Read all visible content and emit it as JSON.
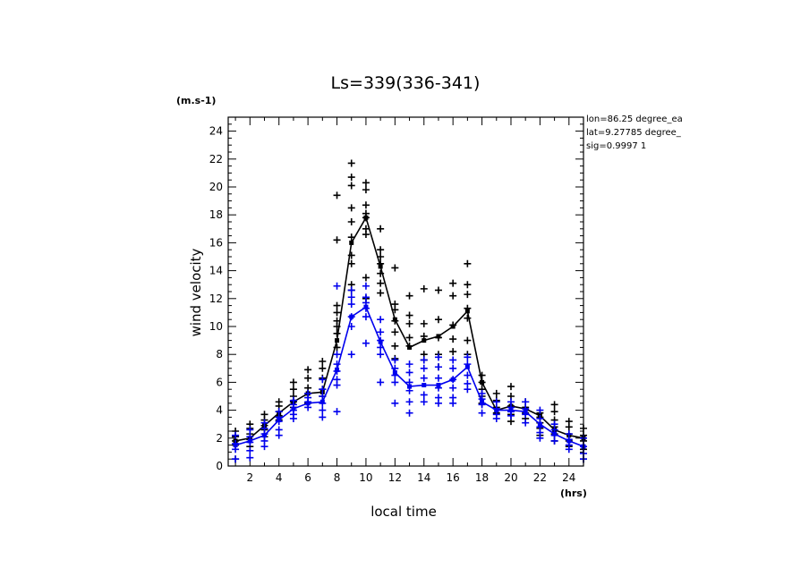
{
  "chart_data": {
    "type": "scatter",
    "title": "Ls=339(336-341)",
    "ylabel": "wind velocity",
    "yunit": "(m.s-1)",
    "xlabel": "local time",
    "xunit": "(hrs)",
    "xlim": [
      0.5,
      25
    ],
    "ylim": [
      0,
      25
    ],
    "xticks": [
      2,
      4,
      6,
      8,
      10,
      12,
      14,
      16,
      18,
      20,
      22,
      24
    ],
    "yticks": [
      0,
      2,
      4,
      6,
      8,
      10,
      12,
      14,
      16,
      18,
      20,
      22,
      24
    ],
    "grid": false,
    "annotations": [
      "lon=86.25 degree_ea",
      "lat=9.27785 degree_",
      "sig=0.9997 1"
    ],
    "colors": {
      "black": "#000000",
      "blue": "#0000ee"
    },
    "series": [
      {
        "color": "black",
        "x": [
          1,
          2,
          3,
          4,
          5,
          6,
          7,
          8,
          9,
          10,
          11,
          12,
          13,
          14,
          15,
          16,
          17,
          18,
          19,
          20,
          21,
          22,
          23,
          24,
          25
        ],
        "values": [
          1.8,
          2.0,
          2.9,
          3.8,
          4.6,
          5.2,
          5.3,
          9.0,
          16.0,
          17.8,
          14.3,
          10.5,
          8.5,
          9.0,
          9.3,
          10.0,
          11.1,
          6.0,
          4.0,
          4.3,
          4.1,
          3.6,
          2.6,
          2.2,
          2.0
        ],
        "points": [
          [
            1,
            2.5
          ],
          [
            1,
            2.1
          ],
          [
            1,
            1.8
          ],
          [
            1,
            1.5
          ],
          [
            1,
            0.5
          ],
          [
            2,
            3.0
          ],
          [
            2,
            2.7
          ],
          [
            2,
            2.3
          ],
          [
            2,
            1.9
          ],
          [
            2,
            1.4
          ],
          [
            3,
            3.7
          ],
          [
            3,
            3.3
          ],
          [
            3,
            2.9
          ],
          [
            3,
            2.6
          ],
          [
            3,
            2.1
          ],
          [
            4,
            4.6
          ],
          [
            4,
            4.3
          ],
          [
            4,
            3.9
          ],
          [
            4,
            3.6
          ],
          [
            4,
            3.3
          ],
          [
            5,
            6.0
          ],
          [
            5,
            5.5
          ],
          [
            5,
            5.0
          ],
          [
            5,
            4.6
          ],
          [
            5,
            4.2
          ],
          [
            6,
            6.9
          ],
          [
            6,
            6.3
          ],
          [
            6,
            5.6
          ],
          [
            6,
            5.2
          ],
          [
            6,
            4.5
          ],
          [
            7,
            7.5
          ],
          [
            7,
            7.0
          ],
          [
            7,
            6.3
          ],
          [
            7,
            5.5
          ],
          [
            7,
            5.0
          ],
          [
            8,
            19.4
          ],
          [
            8,
            16.2
          ],
          [
            8,
            11.5
          ],
          [
            8,
            11.0
          ],
          [
            8,
            10.4
          ],
          [
            8,
            10.0
          ],
          [
            8,
            9.5
          ],
          [
            8,
            8.5
          ],
          [
            9,
            21.7
          ],
          [
            9,
            20.7
          ],
          [
            9,
            20.1
          ],
          [
            9,
            18.5
          ],
          [
            9,
            17.5
          ],
          [
            9,
            16.4
          ],
          [
            9,
            15.1
          ],
          [
            9,
            14.5
          ],
          [
            9,
            13.0
          ],
          [
            9,
            12.6
          ],
          [
            10,
            20.3
          ],
          [
            10,
            19.8
          ],
          [
            10,
            18.7
          ],
          [
            10,
            18.1
          ],
          [
            10,
            17.8
          ],
          [
            10,
            17.0
          ],
          [
            10,
            16.6
          ],
          [
            10,
            13.5
          ],
          [
            10,
            12.0
          ],
          [
            11,
            17.0
          ],
          [
            11,
            15.5
          ],
          [
            11,
            15.0
          ],
          [
            11,
            14.5
          ],
          [
            11,
            13.8
          ],
          [
            11,
            13.1
          ],
          [
            11,
            12.4
          ],
          [
            12,
            14.2
          ],
          [
            12,
            11.6
          ],
          [
            12,
            11.2
          ],
          [
            12,
            10.4
          ],
          [
            12,
            9.6
          ],
          [
            12,
            8.6
          ],
          [
            12,
            7.7
          ],
          [
            13,
            12.2
          ],
          [
            13,
            10.8
          ],
          [
            13,
            10.2
          ],
          [
            13,
            9.2
          ],
          [
            13,
            8.6
          ],
          [
            14,
            12.7
          ],
          [
            14,
            10.2
          ],
          [
            14,
            9.3
          ],
          [
            14,
            8.0
          ],
          [
            14,
            7.6
          ],
          [
            15,
            12.6
          ],
          [
            15,
            10.5
          ],
          [
            15,
            9.2
          ],
          [
            15,
            8.0
          ],
          [
            15,
            7.1
          ],
          [
            16,
            13.1
          ],
          [
            16,
            12.2
          ],
          [
            16,
            10.1
          ],
          [
            16,
            9.1
          ],
          [
            16,
            8.2
          ],
          [
            17,
            14.5
          ],
          [
            17,
            13.0
          ],
          [
            17,
            12.3
          ],
          [
            17,
            11.3
          ],
          [
            17,
            10.6
          ],
          [
            17,
            9.0
          ],
          [
            17,
            8.0
          ],
          [
            18,
            6.5
          ],
          [
            18,
            6.0
          ],
          [
            18,
            5.5
          ],
          [
            18,
            5.0
          ],
          [
            18,
            4.5
          ],
          [
            19,
            5.2
          ],
          [
            19,
            4.7
          ],
          [
            19,
            4.2
          ],
          [
            19,
            3.8
          ],
          [
            20,
            5.7
          ],
          [
            20,
            5.0
          ],
          [
            20,
            4.3
          ],
          [
            20,
            3.7
          ],
          [
            20,
            3.2
          ],
          [
            21,
            4.6
          ],
          [
            21,
            4.2
          ],
          [
            21,
            3.8
          ],
          [
            21,
            3.4
          ],
          [
            22,
            3.8
          ],
          [
            22,
            3.5
          ],
          [
            22,
            3.1
          ],
          [
            22,
            2.7
          ],
          [
            22,
            2.2
          ],
          [
            23,
            4.4
          ],
          [
            23,
            3.9
          ],
          [
            23,
            3.3
          ],
          [
            23,
            2.8
          ],
          [
            23,
            2.3
          ],
          [
            23,
            1.8
          ],
          [
            24,
            3.2
          ],
          [
            24,
            2.8
          ],
          [
            24,
            2.3
          ],
          [
            24,
            1.8
          ],
          [
            24,
            1.4
          ],
          [
            25,
            2.7
          ],
          [
            25,
            2.2
          ],
          [
            25,
            1.8
          ],
          [
            25,
            1.2
          ],
          [
            25,
            0.5
          ]
        ]
      },
      {
        "color": "blue",
        "x": [
          1,
          2,
          3,
          4,
          5,
          6,
          7,
          8,
          9,
          10,
          11,
          12,
          13,
          14,
          15,
          16,
          17,
          18,
          19,
          20,
          21,
          22,
          23,
          24,
          25
        ],
        "values": [
          1.5,
          1.8,
          2.2,
          3.3,
          4.1,
          4.5,
          4.6,
          6.9,
          10.7,
          11.4,
          8.9,
          6.7,
          5.7,
          5.8,
          5.8,
          6.2,
          7.1,
          4.6,
          4.0,
          4.0,
          3.9,
          3.0,
          2.3,
          1.8,
          1.4
        ],
        "points": [
          [
            1,
            2.2
          ],
          [
            1,
            1.6
          ],
          [
            1,
            1.2
          ],
          [
            1,
            0.5
          ],
          [
            2,
            2.6
          ],
          [
            2,
            2.1
          ],
          [
            2,
            1.7
          ],
          [
            2,
            1.1
          ],
          [
            2,
            0.6
          ],
          [
            3,
            3.1
          ],
          [
            3,
            2.7
          ],
          [
            3,
            2.3
          ],
          [
            3,
            1.8
          ],
          [
            3,
            1.4
          ],
          [
            4,
            3.9
          ],
          [
            4,
            3.5
          ],
          [
            4,
            3.2
          ],
          [
            4,
            2.6
          ],
          [
            4,
            2.2
          ],
          [
            5,
            4.7
          ],
          [
            5,
            4.4
          ],
          [
            5,
            4.0
          ],
          [
            5,
            3.7
          ],
          [
            5,
            3.4
          ],
          [
            6,
            5.2
          ],
          [
            6,
            4.9
          ],
          [
            6,
            4.6
          ],
          [
            6,
            4.2
          ],
          [
            7,
            6.2
          ],
          [
            7,
            5.5
          ],
          [
            7,
            5.0
          ],
          [
            7,
            4.5
          ],
          [
            7,
            4.0
          ],
          [
            7,
            3.5
          ],
          [
            8,
            12.9
          ],
          [
            8,
            8.0
          ],
          [
            8,
            7.3
          ],
          [
            8,
            6.8
          ],
          [
            8,
            6.2
          ],
          [
            8,
            5.8
          ],
          [
            8,
            3.9
          ],
          [
            9,
            12.6
          ],
          [
            9,
            12.1
          ],
          [
            9,
            11.6
          ],
          [
            9,
            10.7
          ],
          [
            9,
            10.0
          ],
          [
            9,
            8.0
          ],
          [
            10,
            12.9
          ],
          [
            10,
            12.1
          ],
          [
            10,
            11.7
          ],
          [
            10,
            11.3
          ],
          [
            10,
            10.7
          ],
          [
            10,
            8.8
          ],
          [
            11,
            10.5
          ],
          [
            11,
            9.6
          ],
          [
            11,
            9.0
          ],
          [
            11,
            8.5
          ],
          [
            11,
            8.0
          ],
          [
            11,
            6.0
          ],
          [
            12,
            7.6
          ],
          [
            12,
            7.0
          ],
          [
            12,
            6.5
          ],
          [
            12,
            6.0
          ],
          [
            12,
            4.5
          ],
          [
            13,
            7.3
          ],
          [
            13,
            6.7
          ],
          [
            13,
            6.0
          ],
          [
            13,
            5.4
          ],
          [
            13,
            4.6
          ],
          [
            13,
            3.8
          ],
          [
            14,
            7.6
          ],
          [
            14,
            7.0
          ],
          [
            14,
            6.3
          ],
          [
            14,
            5.1
          ],
          [
            14,
            4.6
          ],
          [
            15,
            7.8
          ],
          [
            15,
            7.1
          ],
          [
            15,
            6.3
          ],
          [
            15,
            5.6
          ],
          [
            15,
            4.9
          ],
          [
            15,
            4.5
          ],
          [
            16,
            7.6
          ],
          [
            16,
            7.0
          ],
          [
            16,
            6.2
          ],
          [
            16,
            5.6
          ],
          [
            16,
            4.9
          ],
          [
            16,
            4.5
          ],
          [
            17,
            7.8
          ],
          [
            17,
            7.3
          ],
          [
            17,
            6.5
          ],
          [
            17,
            5.9
          ],
          [
            17,
            5.5
          ],
          [
            18,
            5.2
          ],
          [
            18,
            4.8
          ],
          [
            18,
            4.4
          ],
          [
            18,
            3.8
          ],
          [
            19,
            4.6
          ],
          [
            19,
            4.1
          ],
          [
            19,
            3.7
          ],
          [
            19,
            3.4
          ],
          [
            20,
            4.6
          ],
          [
            20,
            4.2
          ],
          [
            20,
            3.9
          ],
          [
            20,
            3.6
          ],
          [
            21,
            4.6
          ],
          [
            21,
            4.1
          ],
          [
            21,
            3.7
          ],
          [
            21,
            3.1
          ],
          [
            22,
            4.0
          ],
          [
            22,
            3.4
          ],
          [
            22,
            2.8
          ],
          [
            22,
            2.4
          ],
          [
            22,
            2.0
          ],
          [
            23,
            3.0
          ],
          [
            23,
            2.6
          ],
          [
            23,
            2.2
          ],
          [
            23,
            1.8
          ],
          [
            24,
            2.3
          ],
          [
            24,
            1.9
          ],
          [
            24,
            1.5
          ],
          [
            24,
            1.2
          ],
          [
            25,
            2.0
          ],
          [
            25,
            1.4
          ],
          [
            25,
            0.9
          ],
          [
            25,
            0.5
          ]
        ]
      }
    ]
  }
}
